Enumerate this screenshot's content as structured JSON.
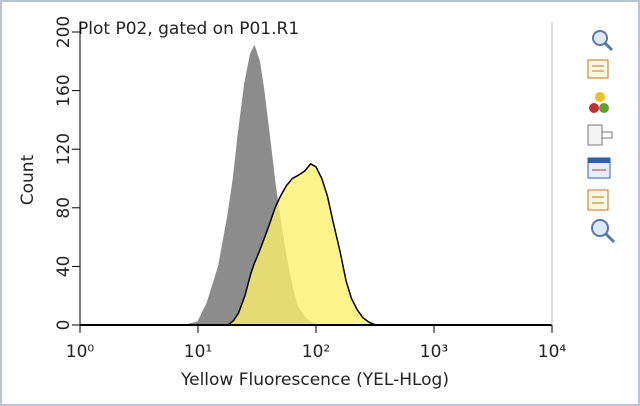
{
  "chart_data": {
    "type": "area",
    "title": "Plot P02, gated on P01.R1",
    "xlabel": "Yellow Fluorescence (YEL-HLog)",
    "ylabel": "Count",
    "xscale": "log",
    "x": [
      8,
      10,
      12,
      15,
      18,
      20,
      22,
      25,
      28,
      30,
      33,
      36,
      40,
      45,
      50,
      56,
      63,
      70,
      80,
      90,
      100,
      112,
      125,
      140,
      160,
      180,
      200,
      225,
      250,
      280,
      320,
      360,
      400
    ],
    "series": [
      {
        "color": "#8c8c8c",
        "values": [
          0,
          2,
          15,
          40,
          75,
          100,
          130,
          165,
          185,
          190,
          180,
          160,
          130,
          95,
          70,
          45,
          25,
          12,
          5,
          2,
          0,
          0,
          0,
          0,
          0,
          0,
          0,
          0,
          0,
          0,
          0,
          0,
          0
        ]
      },
      {
        "color": "#fff06a",
        "values": [
          0,
          0,
          0,
          0,
          0,
          3,
          8,
          20,
          35,
          42,
          50,
          58,
          68,
          80,
          88,
          95,
          100,
          102,
          105,
          110,
          108,
          100,
          88,
          70,
          50,
          30,
          18,
          10,
          5,
          2,
          0,
          0,
          0
        ]
      }
    ],
    "xlim": [
      1,
      10000
    ],
    "xticks": [
      {
        "value": 1,
        "label": "10⁰"
      },
      {
        "value": 10,
        "label": "10¹"
      },
      {
        "value": 100,
        "label": "10²"
      },
      {
        "value": 1000,
        "label": "10³"
      },
      {
        "value": 10000,
        "label": "10⁴"
      }
    ],
    "ylim": [
      0,
      200
    ],
    "yticks": [
      0,
      40,
      80,
      120,
      160,
      200
    ]
  }
}
